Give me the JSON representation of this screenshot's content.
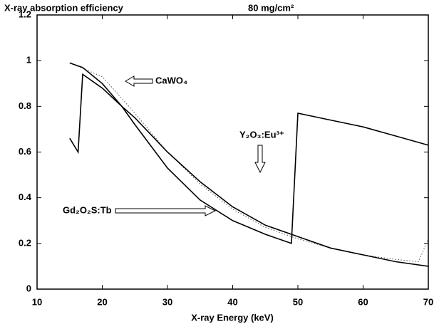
{
  "chart_data": {
    "type": "line",
    "title": "X-ray absorption efficiency",
    "subtitle": "80 mg/cm²",
    "x_label": "X-ray Energy (keV)",
    "xlim": [
      10,
      70
    ],
    "xticks": [
      10,
      20,
      30,
      40,
      50,
      60,
      70
    ],
    "ylim": [
      0,
      1.2
    ],
    "yticks": [
      0,
      0.2,
      0.4,
      0.6,
      0.8,
      1,
      1.2
    ],
    "grid": false,
    "series": [
      {
        "name": "CaWO₄",
        "color": "#555555",
        "style": "dotted",
        "x": [
          15,
          20,
          25,
          30,
          35,
          40,
          45,
          50,
          55,
          60,
          65,
          68.5,
          70
        ],
        "values": [
          0.99,
          0.93,
          0.77,
          0.6,
          0.46,
          0.35,
          0.27,
          0.22,
          0.18,
          0.15,
          0.13,
          0.12,
          0.22
        ]
      },
      {
        "name": "Y₂O₃:Eu³⁺",
        "color": "#000000",
        "style": "solid",
        "x": [
          15,
          16.3,
          17,
          20,
          23,
          25,
          30,
          35,
          40,
          45,
          50,
          55,
          60,
          65,
          70
        ],
        "values": [
          0.66,
          0.6,
          0.94,
          0.88,
          0.8,
          0.75,
          0.6,
          0.47,
          0.36,
          0.28,
          0.23,
          0.18,
          0.15,
          0.12,
          0.1
        ]
      },
      {
        "name": "Gd₂O₂S:Tb",
        "color": "#000000",
        "style": "solid",
        "x": [
          15,
          17,
          20,
          23,
          25,
          30,
          35,
          40,
          45,
          49,
          50,
          55,
          60,
          65,
          70
        ],
        "values": [
          0.99,
          0.97,
          0.9,
          0.8,
          0.72,
          0.53,
          0.39,
          0.3,
          0.24,
          0.2,
          0.77,
          0.74,
          0.71,
          0.67,
          0.63
        ]
      }
    ]
  }
}
